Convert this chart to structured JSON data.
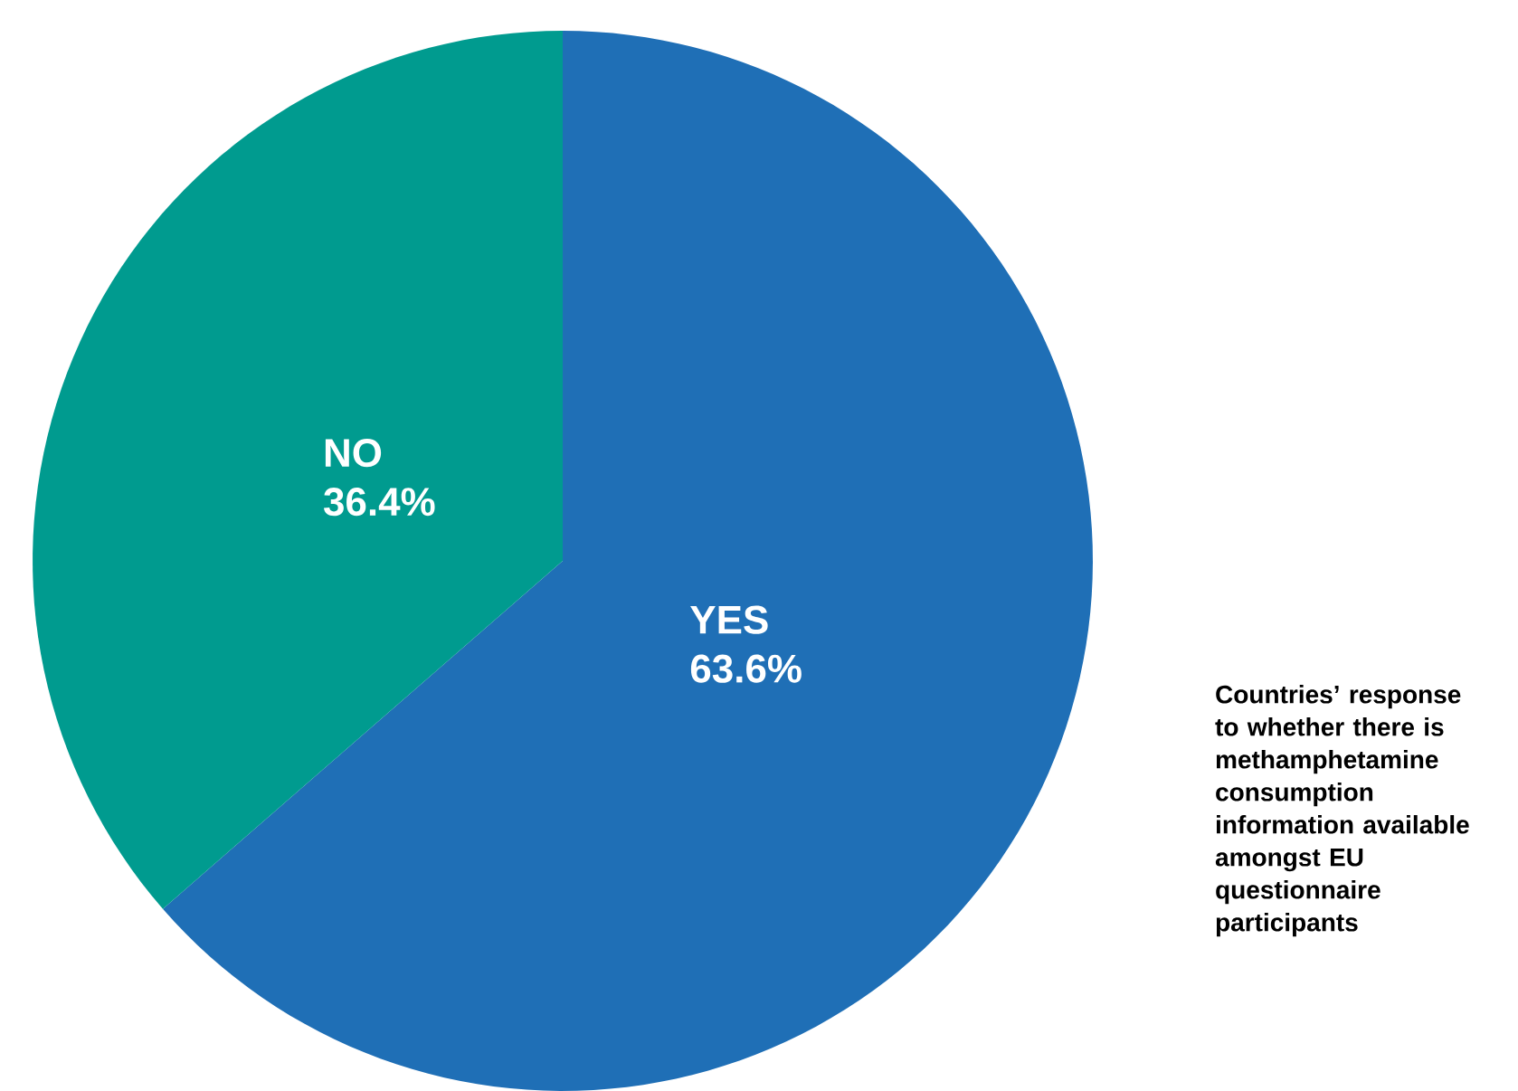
{
  "chart_data": {
    "type": "pie",
    "categories": [
      "YES",
      "NO"
    ],
    "values": [
      63.6,
      36.4
    ],
    "colors": [
      "#1f6fb6",
      "#009b8f"
    ],
    "value_labels": [
      "63.6%",
      "36.4%"
    ],
    "annotations": [
      "Countries’ response to whether there is methamphetamine consumption information available amongst EU questionnaire participants"
    ]
  }
}
